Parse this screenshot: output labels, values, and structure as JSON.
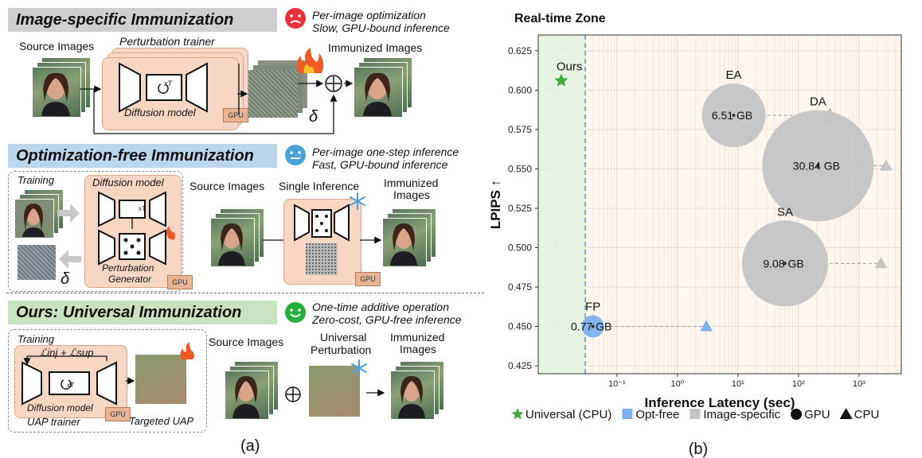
{
  "left": {
    "sections": [
      {
        "title": "Image-specific Immunization",
        "note1": "Per-image optimization",
        "note2": "Slow, GPU-bound inference",
        "labels": {
          "source": "Source Images",
          "trainer": "Perturbation trainer",
          "immunized": "Immunized Images",
          "model": "Diffusion model",
          "gpu": "GPU",
          "delta": "δ",
          "xt": "xT"
        }
      },
      {
        "title": "Optimization-free Immunization",
        "note1": "Per-image one-step inference",
        "note2": "Fast, GPU-bound inference",
        "labels": {
          "training": "Training",
          "model": "Diffusion model",
          "generator1": "Perturbation",
          "generator2": "Generator",
          "source": "Source Images",
          "single": "Single Inference",
          "immunized1": "Immunized",
          "immunized2": "Images",
          "gpu": "GPU",
          "delta": "δ",
          "xt": "xT"
        }
      },
      {
        "title": "Ours: Universal Immunization",
        "note1": "One-time additive operation",
        "note2": "Zero-cost, GPU-free inference",
        "labels": {
          "training": "Training",
          "loss": "ℒinj + ℒsup",
          "model": "Diffusion model",
          "trainer": "UAP trainer",
          "target": "Targeted UAP",
          "source": "Source Images",
          "universal1": "Universal",
          "universal2": "Perturbation",
          "immunized1": "Immunized",
          "immunized2": "Images",
          "gpu": "GPU",
          "xt": "xT"
        }
      }
    ],
    "caption": "(a)",
    "colors": {
      "bar1": "#cfcfcf",
      "bar2": "#bcd6ec",
      "bar3": "#c9e3c0",
      "sad": "#e8323c",
      "neutral": "#4aa3d6",
      "happy": "#27ae3f"
    }
  },
  "chart_data": {
    "type": "scatter",
    "title": "Real-time Zone",
    "xlabel": "Inference Latency (sec)",
    "ylabel": "LPIPS ↑",
    "xscale": "log",
    "xlim": [
      0.005,
      5000
    ],
    "ylim": [
      0.42,
      0.635
    ],
    "yticks": [
      "0.425",
      "0.450",
      "0.475",
      "0.500",
      "0.525",
      "0.550",
      "0.575",
      "0.600",
      "0.625"
    ],
    "xticks": [
      "10⁻¹",
      "10⁰",
      "10¹",
      "10²",
      "10³"
    ],
    "realtime_threshold": 0.03,
    "points": [
      {
        "name": "Ours",
        "x": 0.012,
        "y": 0.606,
        "marker": "star",
        "color": "#3daa3d",
        "label": "Ours"
      },
      {
        "name": "FP",
        "x": 0.04,
        "y": 0.45,
        "memory": "0.77 GB",
        "marker": "circle",
        "color": "#7fb1ee",
        "label": "FP",
        "cpu_x": 3.0,
        "cpu_y": 0.45,
        "cpu_color": "#7fb1ee"
      },
      {
        "name": "EA",
        "x": 8.5,
        "y": 0.584,
        "memory": "6.51 GB",
        "marker": "circle",
        "color": "#c4c4c4",
        "label": "EA",
        "cpu_x": 330,
        "cpu_y": 0.584,
        "cpu_color": "#ffffff"
      },
      {
        "name": "DA",
        "x": 210,
        "y": 0.552,
        "memory": "30.84 GB",
        "marker": "circle",
        "color": "#c4c4c4",
        "label": "DA",
        "cpu_x": 2800,
        "cpu_y": 0.552,
        "cpu_color": "#c4c4c4"
      },
      {
        "name": "SA",
        "x": 60,
        "y": 0.49,
        "memory": "9.08 GB",
        "marker": "circle",
        "color": "#c4c4c4",
        "label": "SA",
        "cpu_x": 2300,
        "cpu_y": 0.49,
        "cpu_color": "#c4c4c4"
      }
    ],
    "legend": [
      {
        "text": "Universal (CPU)",
        "marker": "star",
        "color": "#3daa3d"
      },
      {
        "text": "Opt-free",
        "marker": "square",
        "color": "#7fb1ee"
      },
      {
        "text": "Image-specific",
        "marker": "square",
        "color": "#c4c4c4"
      },
      {
        "text": "GPU",
        "marker": "circle",
        "color": "#111111"
      },
      {
        "text": "CPU",
        "marker": "triangle",
        "color": "#111111"
      }
    ],
    "legend_placement": "bottom",
    "caption": "(b)"
  }
}
